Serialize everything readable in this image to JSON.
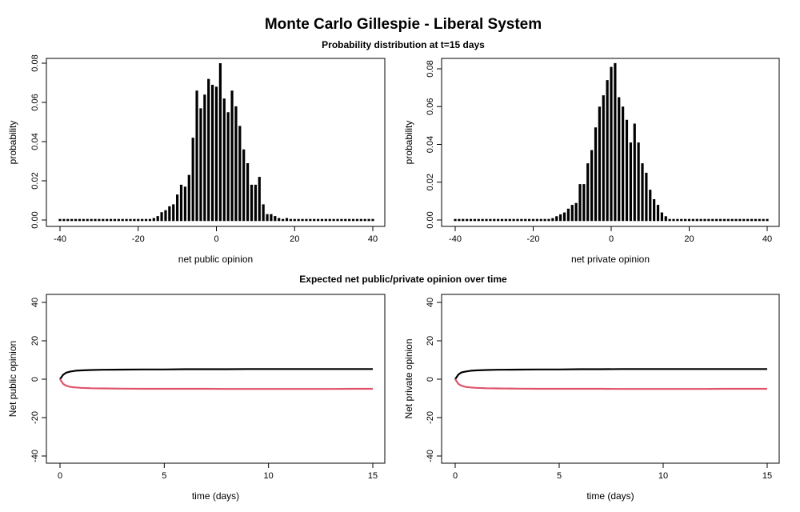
{
  "figure": {
    "title": "Monte Carlo Gillespie - Liberal System",
    "subtitle_top": "Probability distribution at t=15 days",
    "subtitle_bottom": "Expected net public/private opinion over time"
  },
  "colors": {
    "bar": "#000000",
    "upper_line": "#000000",
    "lower_line": "#DF536B"
  },
  "chart_data": [
    {
      "type": "bar",
      "xlabel": "net public opinion",
      "ylabel": "probability",
      "xlim": [
        -40,
        40
      ],
      "ylim": [
        0,
        0.08
      ],
      "xticks": [
        -40,
        -20,
        0,
        20,
        40
      ],
      "yticks": [
        0.0,
        0.02,
        0.04,
        0.06,
        0.08
      ],
      "xtick_labels": [
        "-40",
        "-20",
        "0",
        "20",
        "40"
      ],
      "ytick_labels": [
        "0.00",
        "0.02",
        "0.04",
        "0.06",
        "0.08"
      ],
      "x": [
        -40,
        -39,
        -38,
        -37,
        -36,
        -35,
        -34,
        -33,
        -32,
        -31,
        -30,
        -29,
        -28,
        -27,
        -26,
        -25,
        -24,
        -23,
        -22,
        -21,
        -20,
        -19,
        -18,
        -17,
        -16,
        -15,
        -14,
        -13,
        -12,
        -11,
        -10,
        -9,
        -8,
        -7,
        -6,
        -5,
        -4,
        -3,
        -2,
        -1,
        0,
        1,
        2,
        3,
        4,
        5,
        6,
        7,
        8,
        9,
        10,
        11,
        12,
        13,
        14,
        15,
        16,
        17,
        18,
        19,
        20,
        21,
        22,
        23,
        24,
        25,
        26,
        27,
        28,
        29,
        30,
        31,
        32,
        33,
        34,
        35,
        36,
        37,
        38,
        39,
        40
      ],
      "values": [
        0,
        0,
        0,
        0,
        0,
        0,
        0,
        0,
        0,
        0,
        0,
        0,
        0,
        0,
        0,
        0,
        0,
        0,
        0,
        0,
        0,
        0,
        0,
        0,
        0.001,
        0.002,
        0.004,
        0.005,
        0.007,
        0.008,
        0.013,
        0.018,
        0.017,
        0.023,
        0.042,
        0.066,
        0.057,
        0.064,
        0.072,
        0.069,
        0.068,
        0.08,
        0.062,
        0.055,
        0.066,
        0.058,
        0.048,
        0.036,
        0.029,
        0.018,
        0.018,
        0.022,
        0.008,
        0.003,
        0.003,
        0.002,
        0.001,
        0,
        0.001,
        0,
        0,
        0,
        0,
        0,
        0,
        0,
        0,
        0,
        0,
        0,
        0,
        0,
        0,
        0,
        0,
        0,
        0,
        0,
        0,
        0,
        0
      ]
    },
    {
      "type": "bar",
      "xlabel": "net private opinion",
      "ylabel": "probability",
      "xlim": [
        -40,
        40
      ],
      "ylim": [
        0,
        0.08
      ],
      "xticks": [
        -40,
        -20,
        0,
        20,
        40
      ],
      "yticks": [
        0.0,
        0.02,
        0.04,
        0.06,
        0.08
      ],
      "xtick_labels": [
        "-40",
        "-20",
        "0",
        "20",
        "40"
      ],
      "ytick_labels": [
        "0.00",
        "0.02",
        "0.04",
        "0.06",
        "0.08"
      ],
      "x": [
        -40,
        -39,
        -38,
        -37,
        -36,
        -35,
        -34,
        -33,
        -32,
        -31,
        -30,
        -29,
        -28,
        -27,
        -26,
        -25,
        -24,
        -23,
        -22,
        -21,
        -20,
        -19,
        -18,
        -17,
        -16,
        -15,
        -14,
        -13,
        -12,
        -11,
        -10,
        -9,
        -8,
        -7,
        -6,
        -5,
        -4,
        -3,
        -2,
        -1,
        0,
        1,
        2,
        3,
        4,
        5,
        6,
        7,
        8,
        9,
        10,
        11,
        12,
        13,
        14,
        15,
        16,
        17,
        18,
        19,
        20,
        21,
        22,
        23,
        24,
        25,
        26,
        27,
        28,
        29,
        30,
        31,
        32,
        33,
        34,
        35,
        36,
        37,
        38,
        39,
        40
      ],
      "values": [
        0,
        0,
        0,
        0,
        0,
        0,
        0,
        0,
        0,
        0,
        0,
        0,
        0,
        0,
        0,
        0,
        0,
        0,
        0,
        0,
        0,
        0,
        0,
        0,
        0,
        0.001,
        0.002,
        0.003,
        0.004,
        0.006,
        0.008,
        0.009,
        0.019,
        0.019,
        0.03,
        0.037,
        0.049,
        0.06,
        0.066,
        0.074,
        0.081,
        0.083,
        0.065,
        0.06,
        0.053,
        0.041,
        0.051,
        0.041,
        0.03,
        0.025,
        0.016,
        0.011,
        0.008,
        0.004,
        0.002,
        0,
        0,
        0,
        0,
        0,
        0,
        0,
        0,
        0,
        0,
        0,
        0,
        0,
        0,
        0,
        0,
        0,
        0,
        0,
        0,
        0,
        0,
        0,
        0,
        0,
        0
      ]
    },
    {
      "type": "line",
      "xlabel": "time (days)",
      "ylabel": "Net public opinion",
      "xlim": [
        0,
        15
      ],
      "ylim": [
        -40,
        40
      ],
      "xticks": [
        0,
        5,
        10,
        15
      ],
      "yticks": [
        -40,
        -20,
        0,
        20,
        40
      ],
      "xtick_labels": [
        "0",
        "5",
        "10",
        "15"
      ],
      "ytick_labels": [
        "-40",
        "-20",
        "0",
        "20",
        "40"
      ],
      "series": [
        {
          "x": [
            0,
            0.15,
            0.3,
            0.5,
            0.75,
            1,
            1.5,
            2,
            3,
            4,
            5,
            6,
            7,
            8,
            9,
            10,
            11,
            12,
            13,
            14,
            15
          ],
          "values": [
            0,
            2.3,
            3.4,
            4.0,
            4.4,
            4.6,
            4.8,
            4.9,
            5.0,
            5.1,
            5.1,
            5.2,
            5.2,
            5.2,
            5.3,
            5.3,
            5.3,
            5.3,
            5.3,
            5.3,
            5.3
          ]
        },
        {
          "x": [
            0,
            0.15,
            0.3,
            0.5,
            0.75,
            1,
            1.5,
            2,
            3,
            4,
            5,
            6,
            7,
            8,
            9,
            10,
            11,
            12,
            13,
            14,
            15
          ],
          "values": [
            0,
            -2.4,
            -3.4,
            -4.0,
            -4.3,
            -4.5,
            -4.7,
            -4.8,
            -4.9,
            -5.0,
            -5.0,
            -5.0,
            -5.0,
            -5.1,
            -5.1,
            -5.1,
            -5.1,
            -5.1,
            -5.1,
            -5.0,
            -5.0
          ]
        }
      ]
    },
    {
      "type": "line",
      "xlabel": "time (days)",
      "ylabel": "Net private opinion",
      "xlim": [
        0,
        15
      ],
      "ylim": [
        -40,
        40
      ],
      "xticks": [
        0,
        5,
        10,
        15
      ],
      "yticks": [
        -40,
        -20,
        0,
        20,
        40
      ],
      "xtick_labels": [
        "0",
        "5",
        "10",
        "15"
      ],
      "ytick_labels": [
        "-40",
        "-20",
        "0",
        "20",
        "40"
      ],
      "series": [
        {
          "x": [
            0,
            0.15,
            0.3,
            0.5,
            0.75,
            1,
            1.5,
            2,
            3,
            4,
            5,
            6,
            7,
            8,
            9,
            10,
            11,
            12,
            13,
            14,
            15
          ],
          "values": [
            0,
            2.4,
            3.5,
            4.0,
            4.4,
            4.6,
            4.8,
            4.9,
            5.0,
            5.1,
            5.1,
            5.2,
            5.2,
            5.3,
            5.3,
            5.3,
            5.3,
            5.3,
            5.3,
            5.3,
            5.3
          ]
        },
        {
          "x": [
            0,
            0.15,
            0.3,
            0.5,
            0.75,
            1,
            1.5,
            2,
            3,
            4,
            5,
            6,
            7,
            8,
            9,
            10,
            11,
            12,
            13,
            14,
            15
          ],
          "values": [
            0,
            -2.4,
            -3.4,
            -4.0,
            -4.3,
            -4.5,
            -4.7,
            -4.8,
            -4.9,
            -5.0,
            -5.0,
            -5.0,
            -5.0,
            -5.1,
            -5.1,
            -5.1,
            -5.1,
            -5.1,
            -5.0,
            -5.0,
            -5.0
          ]
        }
      ]
    }
  ]
}
